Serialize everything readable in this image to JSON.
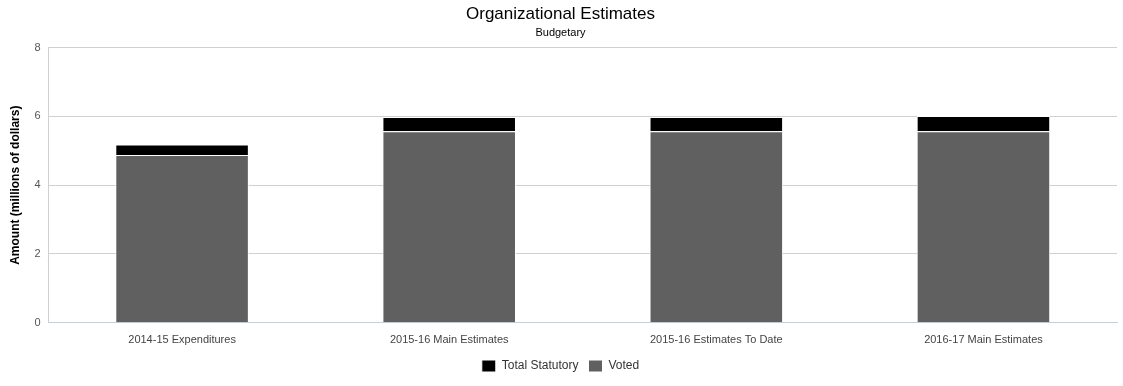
{
  "chart_data": {
    "type": "bar",
    "title": "Organizational Estimates",
    "subtitle": "Budgetary",
    "y_label": "Amount (millions of dollars)",
    "categories": [
      "2014-15 Expenditures",
      "2015-16 Main Estimates",
      "2015-16 Estimates To Date",
      "2016-17 Main Estimates"
    ],
    "series": [
      {
        "name": "Total Statutory",
        "color": "#000000",
        "values": [
          0.3,
          0.41,
          0.41,
          0.44
        ]
      },
      {
        "name": "Voted",
        "color": "#606060",
        "values": [
          4.88,
          5.57,
          5.57,
          5.57
        ]
      }
    ],
    "ylim": [
      0,
      8
    ],
    "yticks": [
      0,
      2,
      4,
      6,
      8
    ],
    "stacked": true,
    "grid": true,
    "legend": "bottom"
  }
}
